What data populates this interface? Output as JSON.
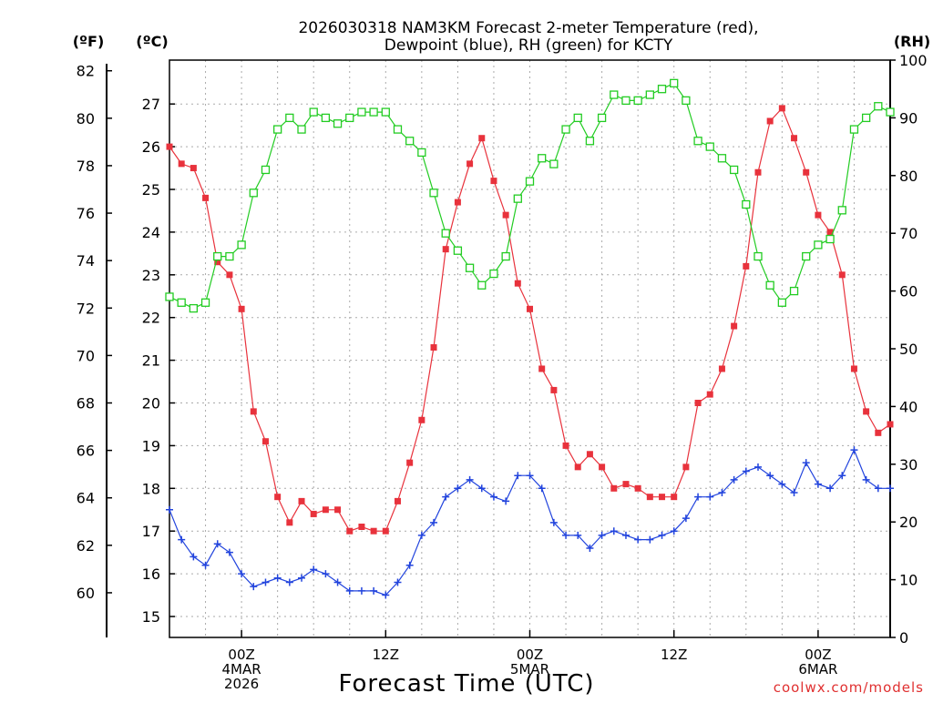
{
  "chart_data": {
    "type": "line",
    "title_line1": "2026030318 NAM3KM Forecast 2-meter Temperature (red),",
    "title_line2": "Dewpoint (blue), RH (green) for KCTY",
    "xlabel": "Forecast Time (UTC)",
    "y_left_f_unit": "(ºF)",
    "y_left_c_unit": "(ºC)",
    "y_right_unit": "(RH)",
    "credit": "coolwx.com/models",
    "x_range_hours": [
      0,
      60
    ],
    "x_ticks": [
      {
        "hour": 6,
        "labels": [
          "00Z",
          "4MAR",
          "2026"
        ]
      },
      {
        "hour": 18,
        "labels": [
          "12Z"
        ]
      },
      {
        "hour": 30,
        "labels": [
          "00Z",
          "5MAR"
        ]
      },
      {
        "hour": 42,
        "labels": [
          "12Z"
        ]
      },
      {
        "hour": 54,
        "labels": [
          "00Z",
          "6MAR"
        ]
      }
    ],
    "y_celsius_range": [
      14.5,
      28.0
    ],
    "y_celsius_ticks": [
      15,
      16,
      17,
      18,
      19,
      20,
      21,
      22,
      23,
      24,
      25,
      26,
      27
    ],
    "y_fahrenheit_ticks": [
      60,
      62,
      64,
      66,
      68,
      70,
      72,
      74,
      76,
      78,
      80,
      82
    ],
    "y_rh_range": [
      0,
      100
    ],
    "y_rh_ticks": [
      0,
      10,
      20,
      30,
      40,
      50,
      60,
      70,
      80,
      90,
      100
    ],
    "grid": true,
    "series": [
      {
        "name": "2-meter Temperature",
        "color": "#e8323c",
        "marker": "filled-square",
        "axis": "celsius",
        "values": [
          26.0,
          25.6,
          25.5,
          24.8,
          23.3,
          23.0,
          22.2,
          19.8,
          19.1,
          17.8,
          17.2,
          17.7,
          17.4,
          17.5,
          17.5,
          17.0,
          17.1,
          17.0,
          17.0,
          17.7,
          18.6,
          19.6,
          21.3,
          23.6,
          24.7,
          25.6,
          26.2,
          25.2,
          24.4,
          22.8,
          22.2,
          20.8,
          20.3,
          19.0,
          18.5,
          18.8,
          18.5,
          18.0,
          18.1,
          18.0,
          17.8,
          17.8,
          17.8,
          18.5,
          20.0,
          20.2,
          20.8,
          21.8,
          23.2,
          25.4,
          26.6,
          26.9,
          26.2,
          25.4,
          24.4,
          24.0,
          23.0,
          20.8,
          19.8,
          19.3,
          19.5
        ]
      },
      {
        "name": "Dewpoint",
        "color": "#2244dd",
        "marker": "plus",
        "axis": "celsius",
        "values": [
          17.5,
          16.8,
          16.4,
          16.2,
          16.7,
          16.5,
          16.0,
          15.7,
          15.8,
          15.9,
          15.8,
          15.9,
          16.1,
          16.0,
          15.8,
          15.6,
          15.6,
          15.6,
          15.5,
          15.8,
          16.2,
          16.9,
          17.2,
          17.8,
          18.0,
          18.2,
          18.0,
          17.8,
          17.7,
          18.3,
          18.3,
          18.0,
          17.2,
          16.9,
          16.9,
          16.6,
          16.9,
          17.0,
          16.9,
          16.8,
          16.8,
          16.9,
          17.0,
          17.3,
          17.8,
          17.8,
          17.9,
          18.2,
          18.4,
          18.5,
          18.3,
          18.1,
          17.9,
          18.6,
          18.1,
          18.0,
          18.3,
          18.9,
          18.2,
          18.0,
          18.0
        ]
      },
      {
        "name": "RH",
        "color": "#22cc22",
        "marker": "open-square",
        "axis": "rh",
        "values": [
          59,
          58,
          57,
          58,
          66,
          66,
          68,
          77,
          81,
          88,
          90,
          88,
          91,
          90,
          89,
          90,
          91,
          91,
          91,
          88,
          86,
          84,
          77,
          70,
          67,
          64,
          61,
          63,
          66,
          76,
          79,
          83,
          82,
          88,
          90,
          86,
          90,
          94,
          93,
          93,
          94,
          95,
          96,
          93,
          86,
          85,
          83,
          81,
          75,
          66,
          61,
          58,
          60,
          66,
          68,
          69,
          74,
          88,
          90,
          92,
          91
        ]
      }
    ]
  }
}
